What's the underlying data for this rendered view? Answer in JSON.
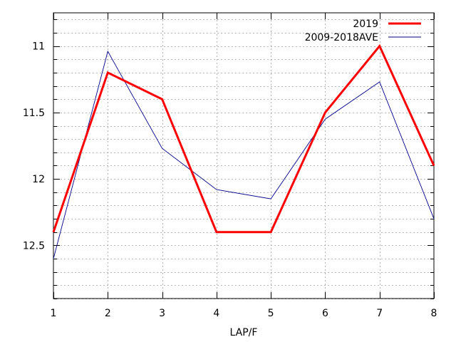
{
  "chart_data": {
    "type": "line",
    "title": "",
    "xlabel": "LAP/F",
    "ylabel": "",
    "x": [
      1,
      2,
      3,
      4,
      5,
      6,
      7,
      8
    ],
    "xlim": [
      1,
      8
    ],
    "ylim": [
      10.75,
      12.9
    ],
    "y_inverted": true,
    "xticks": [
      "1",
      "2",
      "3",
      "4",
      "5",
      "6",
      "7",
      "8"
    ],
    "yticks": [
      11,
      11.5,
      12,
      12.5
    ],
    "ytick_labels": [
      "11",
      "11.5",
      "12",
      "12.5"
    ],
    "y_minor_step": 0.1,
    "grid": true,
    "legend_position": "top-right",
    "series": [
      {
        "name": "2019",
        "values": [
          12.4,
          11.2,
          11.4,
          12.4,
          12.4,
          11.5,
          11.0,
          11.9
        ],
        "color": "#ff0000"
      },
      {
        "name": "2009-2018AVE",
        "values": [
          12.6,
          11.04,
          11.77,
          12.08,
          12.15,
          11.55,
          11.27,
          12.3
        ],
        "color": "#00008b"
      }
    ]
  }
}
